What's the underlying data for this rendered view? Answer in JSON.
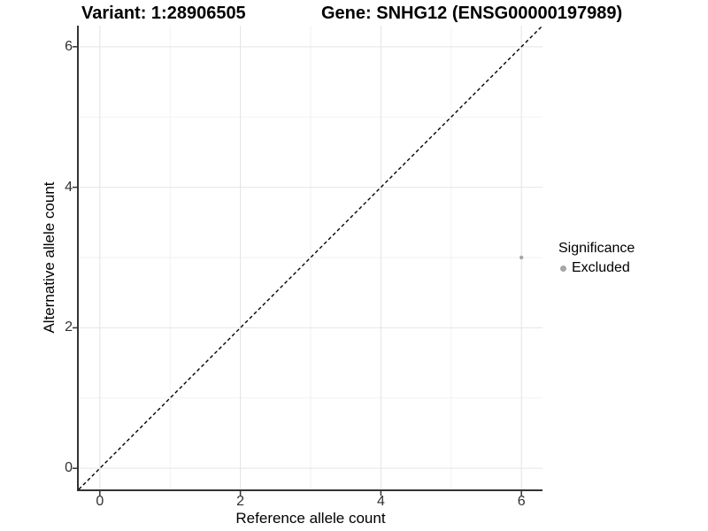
{
  "title": {
    "variant": "Variant: 1:28906505",
    "gene": "Gene: SNHG12 (ENSG00000197989)"
  },
  "axes": {
    "x": {
      "label": "Reference allele count",
      "ticks": [
        "0",
        "2",
        "4",
        "6"
      ]
    },
    "y": {
      "label": "Alternative allele count",
      "ticks": [
        "0",
        "2",
        "4",
        "6"
      ]
    }
  },
  "legend": {
    "title": "Significance",
    "items": [
      {
        "label": "Excluded",
        "color": "#a6a6a6"
      }
    ]
  },
  "colors": {
    "background": "#ffffff",
    "axis_line": "#333333",
    "tick_label": "#303030",
    "grid_major": "#e4e4e4",
    "grid_minor": "#f2f2f2",
    "reference_line": "#000000",
    "point_excluded": "#a6a6a6"
  },
  "chart_data": {
    "type": "scatter",
    "title": "Variant: 1:28906505   Gene: SNHG12 (ENSG00000197989)",
    "xlabel": "Reference allele count",
    "ylabel": "Alternative allele count",
    "xlim": [
      -0.3,
      6.3
    ],
    "ylim": [
      -0.3,
      6.3
    ],
    "x_ticks": [
      0,
      2,
      4,
      6
    ],
    "y_ticks": [
      0,
      2,
      4,
      6
    ],
    "grid": "major and minor gridlines, light gray on white",
    "legend_position": "right",
    "series": [
      {
        "name": "Excluded",
        "color": "#a6a6a6",
        "marker": "circle",
        "point_size": 2.2,
        "points": [
          {
            "x": 6,
            "y": 3
          }
        ]
      }
    ],
    "reference_line": {
      "type": "identity y=x",
      "style": "dashed",
      "color": "#000000",
      "from": [
        -0.3,
        -0.3
      ],
      "to": [
        6.3,
        6.3
      ]
    }
  }
}
